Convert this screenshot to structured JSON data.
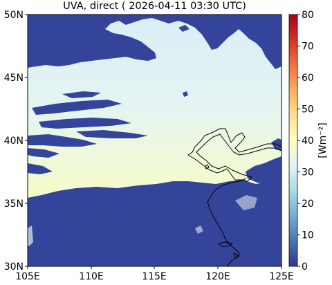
{
  "title": "UVA, direct ( 2026-04-11 03:30 UTC)",
  "map": {
    "x_ticks": [
      "105E",
      "110E",
      "115E",
      "120E",
      "125E"
    ],
    "y_ticks": [
      "50N",
      "45N",
      "40N",
      "35N",
      "30N"
    ],
    "lon_range": [
      105,
      125
    ],
    "lat_range": [
      30,
      50
    ],
    "cloud_color": "#34449a",
    "clear_sky_colors": [
      "#e0f3f8",
      "#ffffbf",
      "#f7fcb0"
    ],
    "coastline_color": "#000000"
  },
  "colorbar": {
    "ticks": [
      "0",
      "10",
      "20",
      "30",
      "40",
      "50",
      "60",
      "70",
      "80"
    ],
    "label": "[Wm⁻²]",
    "range": [
      0,
      80
    ],
    "colors": [
      "#313695",
      "#4575b4",
      "#74add1",
      "#abd9e9",
      "#e0f3f8",
      "#ffffbf",
      "#fee090",
      "#fdae61",
      "#f46d43",
      "#d73027",
      "#a50026"
    ]
  }
}
